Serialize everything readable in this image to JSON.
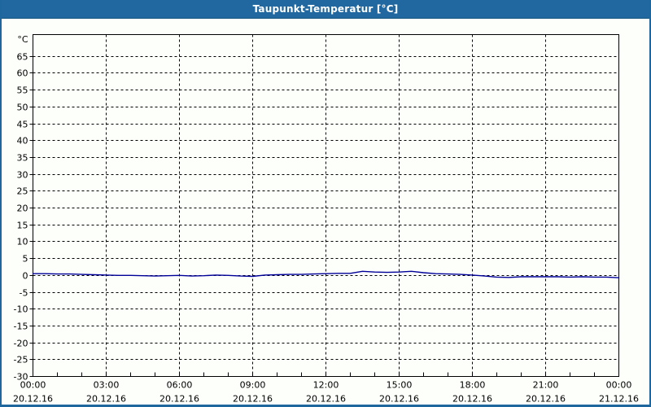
{
  "window": {
    "title": "Taupunkt-Temperatur [°C]",
    "colors": {
      "titlebar": "#20689f",
      "titlebar_edge": "#14567e",
      "window_border": "#1d679e",
      "background": "#fdfffb",
      "grid": "#000000",
      "frame": "#000000",
      "series": "#000099",
      "title_text": "#ffffff",
      "axis_text": "#000000"
    }
  },
  "chart_data": {
    "type": "line",
    "title": "Taupunkt-Temperatur [°C]",
    "y_unit_label": "°C",
    "ylim": [
      -30,
      71
    ],
    "grid": "dashed",
    "legend_position": "none",
    "y_ticks": [
      65,
      60,
      55,
      50,
      45,
      40,
      35,
      30,
      25,
      20,
      15,
      10,
      5,
      0,
      -5,
      -10,
      -15,
      -20,
      -25,
      -30
    ],
    "x_axis": {
      "minor_tick_hours": 1,
      "major_tick_hours": 3,
      "labels": [
        {
          "time": "00:00",
          "date": "20.12.16",
          "hour": 0
        },
        {
          "time": "03:00",
          "date": "20.12.16",
          "hour": 3
        },
        {
          "time": "06:00",
          "date": "20.12.16",
          "hour": 6
        },
        {
          "time": "09:00",
          "date": "20.12.16",
          "hour": 9
        },
        {
          "time": "12:00",
          "date": "20.12.16",
          "hour": 12
        },
        {
          "time": "15:00",
          "date": "20.12.16",
          "hour": 15
        },
        {
          "time": "18:00",
          "date": "20.12.16",
          "hour": 18
        },
        {
          "time": "21:00",
          "date": "20.12.16",
          "hour": 21
        },
        {
          "time": "00:00",
          "date": "21.12.16",
          "hour": 24
        }
      ]
    },
    "series": [
      {
        "name": "Taupunkt-Temperatur",
        "color": "#000099",
        "x_hours": [
          0,
          0.5,
          1,
          1.5,
          2,
          2.5,
          3,
          3.5,
          4,
          4.5,
          5,
          5.5,
          6,
          6.5,
          7,
          7.5,
          8,
          8.5,
          9,
          9.5,
          10,
          10.5,
          11,
          11.5,
          12,
          12.5,
          13,
          13.5,
          14,
          14.5,
          15,
          15.5,
          16,
          16.5,
          17,
          17.5,
          18,
          18.5,
          19,
          19.5,
          20,
          20.5,
          21,
          21.5,
          22,
          22.5,
          23,
          23.5,
          24
        ],
        "values": [
          0.5,
          0.5,
          0.4,
          0.4,
          0.3,
          0.2,
          0.1,
          0.0,
          0.0,
          -0.1,
          -0.2,
          -0.1,
          0.0,
          -0.2,
          -0.1,
          0.1,
          0.0,
          -0.2,
          -0.3,
          0.1,
          0.2,
          0.3,
          0.3,
          0.4,
          0.5,
          0.6,
          0.6,
          1.2,
          1.0,
          0.9,
          1.0,
          1.2,
          0.8,
          0.5,
          0.4,
          0.3,
          0.1,
          -0.2,
          -0.5,
          -0.6,
          -0.4,
          -0.4,
          -0.4,
          -0.4,
          -0.5,
          -0.4,
          -0.5,
          -0.5,
          -0.7
        ]
      }
    ]
  }
}
